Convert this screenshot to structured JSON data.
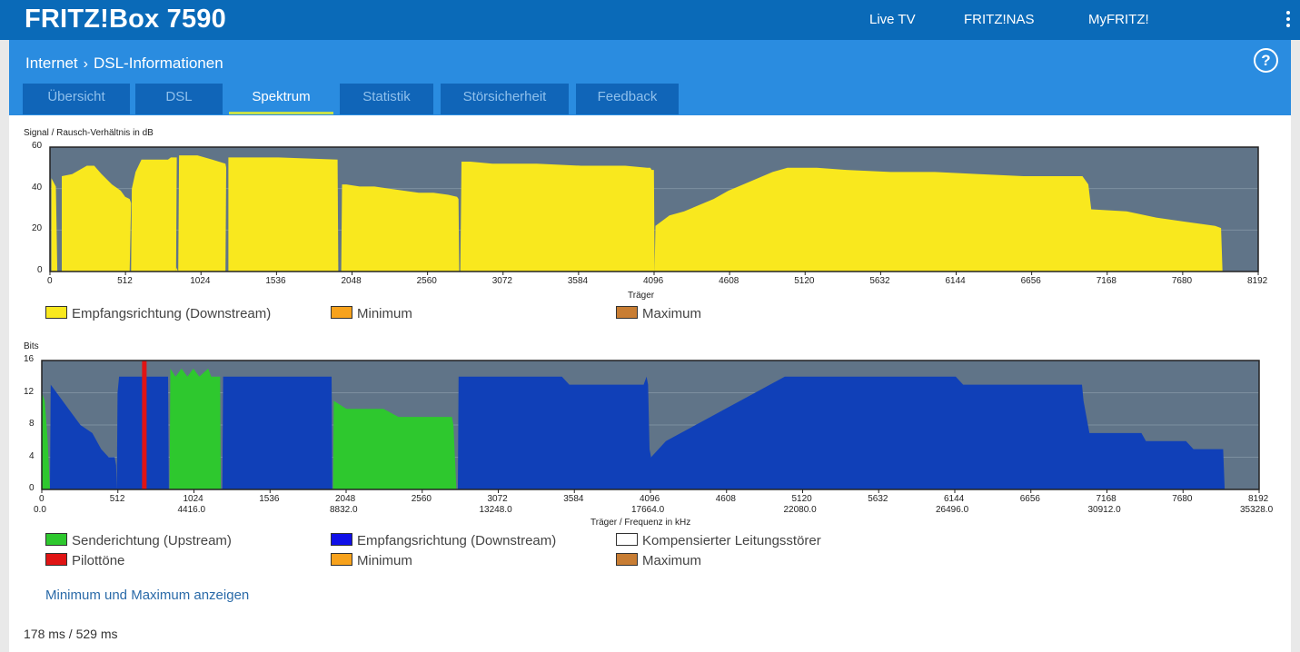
{
  "header": {
    "title": "FRITZ!Box 7590",
    "nav": [
      "Live TV",
      "FRITZ!NAS",
      "MyFRITZ!"
    ]
  },
  "breadcrumb": {
    "parent": "Internet",
    "current": "DSL-Informationen"
  },
  "tabs": [
    {
      "label": "Übersicht",
      "active": false
    },
    {
      "label": "DSL",
      "active": false
    },
    {
      "label": "Spektrum",
      "active": true
    },
    {
      "label": "Statistik",
      "active": false
    },
    {
      "label": "Störsicherheit",
      "active": false
    },
    {
      "label": "Feedback",
      "active": false
    }
  ],
  "help_symbol": "?",
  "chart_data": [
    {
      "type": "area",
      "ylabel": "Signal / Rausch-Verhältnis in dB",
      "xlabel": "Träger",
      "xlim": [
        0,
        8192
      ],
      "ylim": [
        0,
        60
      ],
      "yticks": [
        "0",
        "20",
        "40",
        "60"
      ],
      "xticks": [
        "0",
        "512",
        "1024",
        "1536",
        "2048",
        "2560",
        "3072",
        "3584",
        "4096",
        "4608",
        "5120",
        "5632",
        "6144",
        "6656",
        "7168",
        "7680",
        "8192"
      ],
      "grid": true,
      "legend": [
        "Empfangsrichtung (Downstream)",
        "Minimum",
        "Maximum"
      ],
      "colors": {
        "downstream": "#f9e81e",
        "minimum": "#f7a21c",
        "maximum": "#c87d33",
        "background": "#607488"
      },
      "series": [
        {
          "name": "Empfangsrichtung (Downstream)",
          "segments": [
            [
              [
                10,
                0
              ],
              [
                10,
                45
              ],
              [
                40,
                41
              ],
              [
                50,
                0
              ]
            ],
            [
              [
                80,
                0
              ],
              [
                80,
                46
              ],
              [
                150,
                47
              ],
              [
                250,
                51
              ],
              [
                300,
                51
              ],
              [
                350,
                47
              ],
              [
                420,
                42
              ],
              [
                480,
                39
              ],
              [
                510,
                36
              ],
              [
                540,
                35
              ],
              [
                550,
                33
              ],
              [
                540,
                0
              ]
            ],
            [
              [
                550,
                0
              ],
              [
                555,
                40
              ],
              [
                580,
                48
              ],
              [
                620,
                54
              ],
              [
                800,
                54
              ],
              [
                820,
                55
              ],
              [
                850,
                55
              ],
              [
                860,
                55
              ],
              [
                855,
                0
              ]
            ],
            [
              [
                870,
                0
              ],
              [
                870,
                0
              ]
            ],
            [
              [
                855,
                0
              ],
              [
                855,
                2
              ],
              [
                870,
                0
              ]
            ],
            [
              [
                870,
                0
              ],
              [
                875,
                56
              ],
              [
                1000,
                56
              ],
              [
                1100,
                54
              ],
              [
                1190,
                52
              ],
              [
                1195,
                50
              ],
              [
                1190,
                0
              ]
            ],
            [
              [
                1210,
                0
              ],
              [
                1210,
                55
              ],
              [
                1450,
                55
              ],
              [
                1550,
                55
              ],
              [
                1950,
                54
              ],
              [
                1955,
                0
              ]
            ],
            [
              [
                1975,
                0
              ],
              [
                1980,
                42
              ],
              [
                2010,
                42
              ],
              [
                2100,
                41
              ],
              [
                2200,
                41
              ],
              [
                2300,
                40
              ],
              [
                2400,
                39
              ],
              [
                2500,
                38
              ],
              [
                2600,
                38
              ],
              [
                2700,
                37
              ],
              [
                2760,
                36
              ],
              [
                2770,
                35
              ],
              [
                2775,
                0
              ]
            ],
            [
              [
                2775,
                0
              ],
              [
                2782,
                0
              ]
            ],
            [
              [
                2782,
                0
              ],
              [
                2790,
                53
              ],
              [
                2850,
                53
              ],
              [
                3000,
                52
              ],
              [
                3300,
                52
              ],
              [
                3600,
                51
              ],
              [
                3900,
                51
              ],
              [
                4050,
                50
              ],
              [
                4070,
                50
              ],
              [
                4080,
                49
              ],
              [
                4095,
                49
              ],
              [
                4100,
                0
              ]
            ],
            [
              [
                4100,
                0
              ],
              [
                4105,
                22
              ],
              [
                4200,
                27
              ],
              [
                4300,
                29
              ],
              [
                4400,
                32
              ],
              [
                4500,
                35
              ],
              [
                4600,
                39
              ],
              [
                4700,
                42
              ],
              [
                4800,
                45
              ],
              [
                4900,
                48
              ],
              [
                5000,
                50
              ],
              [
                5200,
                50
              ],
              [
                5400,
                49
              ],
              [
                5700,
                48
              ],
              [
                6000,
                48
              ],
              [
                6300,
                47
              ],
              [
                6600,
                46
              ],
              [
                6800,
                46
              ],
              [
                7000,
                46
              ],
              [
                7040,
                42
              ],
              [
                7060,
                30
              ],
              [
                7300,
                29
              ],
              [
                7500,
                26
              ],
              [
                7700,
                24
              ],
              [
                7900,
                22
              ],
              [
                7940,
                21
              ],
              [
                7950,
                0
              ]
            ]
          ]
        }
      ]
    },
    {
      "type": "area",
      "ylabel": "Bits",
      "xlabel": "Träger / Frequenz in kHz",
      "xlim": [
        0,
        8192
      ],
      "ylim": [
        0,
        16
      ],
      "yticks": [
        "0",
        "4",
        "8",
        "12",
        "16"
      ],
      "xticks": [
        "0",
        "512",
        "1024",
        "1536",
        "2048",
        "2560",
        "3072",
        "3584",
        "4096",
        "4608",
        "5120",
        "5632",
        "6144",
        "6656",
        "7168",
        "7680",
        "8192"
      ],
      "freq_ticks": [
        "0.0",
        "4416.0",
        "8832.0",
        "13248.0",
        "17664.0",
        "22080.0",
        "26496.0",
        "30912.0",
        "35328.0"
      ],
      "grid": true,
      "legend": [
        "Senderichtung (Upstream)",
        "Empfangsrichtung (Downstream)",
        "Kompensierter Leitungsstörer",
        "Pilottöne",
        "Minimum",
        "Maximum"
      ],
      "colors": {
        "upstream": "#2ec82e",
        "downstream": "#1040b8",
        "compensated": "#ffffff",
        "pilot": "#e01414",
        "minimum": "#f7a21c",
        "maximum": "#c87d33",
        "background": "#607488"
      },
      "series": [
        {
          "name": "Senderichtung (Upstream)",
          "segments": [
            [
              [
                0,
                0
              ],
              [
                0,
                12
              ],
              [
                20,
                11
              ],
              [
                40,
                6
              ],
              [
                55,
                0
              ]
            ],
            [
              [
                860,
                0
              ],
              [
                865,
                15
              ],
              [
                900,
                14
              ],
              [
                940,
                15
              ],
              [
                980,
                14
              ],
              [
                1020,
                15
              ],
              [
                1060,
                14
              ],
              [
                1120,
                15
              ],
              [
                1140,
                14
              ],
              [
                1200,
                14
              ],
              [
                1205,
                0
              ]
            ],
            [
              [
                1960,
                0
              ],
              [
                1965,
                11
              ],
              [
                2050,
                10
              ],
              [
                2300,
                10
              ],
              [
                2400,
                9
              ],
              [
                2500,
                9
              ],
              [
                2600,
                9
              ],
              [
                2760,
                9
              ],
              [
                2770,
                8
              ],
              [
                2790,
                0
              ]
            ]
          ]
        },
        {
          "name": "Empfangsrichtung (Downstream)",
          "segments": [
            [
              [
                55,
                0
              ],
              [
                60,
                13
              ],
              [
                100,
                12
              ],
              [
                180,
                10
              ],
              [
                260,
                8
              ],
              [
                340,
                7
              ],
              [
                400,
                5
              ],
              [
                450,
                4
              ],
              [
                490,
                4
              ],
              [
                500,
                3
              ],
              [
                505,
                0
              ]
            ],
            [
              [
                505,
                0
              ],
              [
                510,
                12
              ],
              [
                520,
                14
              ],
              [
                670,
                14
              ],
              [
                680,
                14
              ],
              [
                850,
                14
              ],
              [
                855,
                0
              ]
            ],
            [
              [
                1215,
                0
              ],
              [
                1220,
                14
              ],
              [
                1450,
                14
              ],
              [
                1950,
                14
              ],
              [
                1955,
                0
              ]
            ],
            [
              [
                2800,
                0
              ],
              [
                2805,
                14
              ],
              [
                3000,
                14
              ],
              [
                3300,
                14
              ],
              [
                3500,
                14
              ],
              [
                3550,
                13
              ],
              [
                3900,
                13
              ],
              [
                4050,
                13
              ],
              [
                4070,
                14
              ],
              [
                4080,
                13
              ],
              [
                4090,
                5
              ],
              [
                4100,
                4
              ],
              [
                4200,
                6
              ],
              [
                4300,
                7
              ],
              [
                4400,
                8
              ],
              [
                4500,
                9
              ],
              [
                4600,
                10
              ],
              [
                4700,
                11
              ],
              [
                4800,
                12
              ],
              [
                4900,
                13
              ],
              [
                5000,
                14
              ],
              [
                5500,
                14
              ],
              [
                6000,
                14
              ],
              [
                6150,
                14
              ],
              [
                6200,
                13
              ],
              [
                6500,
                13
              ],
              [
                6900,
                13
              ],
              [
                7000,
                13
              ],
              [
                7010,
                11
              ],
              [
                7050,
                7
              ],
              [
                7150,
                7
              ],
              [
                7400,
                7
              ],
              [
                7430,
                6
              ],
              [
                7700,
                6
              ],
              [
                7750,
                5
              ],
              [
                7950,
                5
              ],
              [
                7960,
                0
              ]
            ]
          ]
        },
        {
          "name": "Pilottöne",
          "bars": [
            [
              690,
              16
            ]
          ]
        }
      ]
    }
  ],
  "link": "Minimum und Maximum anzeigen",
  "timing": "178 ms / 529 ms"
}
